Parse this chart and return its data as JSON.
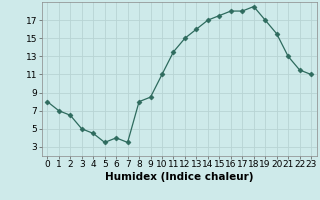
{
  "x": [
    0,
    1,
    2,
    3,
    4,
    5,
    6,
    7,
    8,
    9,
    10,
    11,
    12,
    13,
    14,
    15,
    16,
    17,
    18,
    19,
    20,
    21,
    22,
    23
  ],
  "y": [
    8,
    7,
    6.5,
    5,
    4.5,
    3.5,
    4,
    3.5,
    8,
    8.5,
    11,
    13.5,
    15,
    16,
    17,
    17.5,
    18,
    18,
    18.5,
    17,
    15.5,
    13,
    11.5,
    11
  ],
  "line_color": "#2e6b5e",
  "marker": "D",
  "marker_size": 2.5,
  "bg_color": "#ceeaea",
  "grid_color": "#b8d4d4",
  "xlabel": "Humidex (Indice chaleur)",
  "xlabel_fontsize": 7.5,
  "tick_fontsize": 6.5,
  "ylim": [
    2,
    19
  ],
  "yticks": [
    3,
    5,
    7,
    9,
    11,
    13,
    15,
    17
  ],
  "xlim": [
    -0.5,
    23.5
  ],
  "xticks": [
    0,
    1,
    2,
    3,
    4,
    5,
    6,
    7,
    8,
    9,
    10,
    11,
    12,
    13,
    14,
    15,
    16,
    17,
    18,
    19,
    20,
    21,
    22,
    23
  ]
}
